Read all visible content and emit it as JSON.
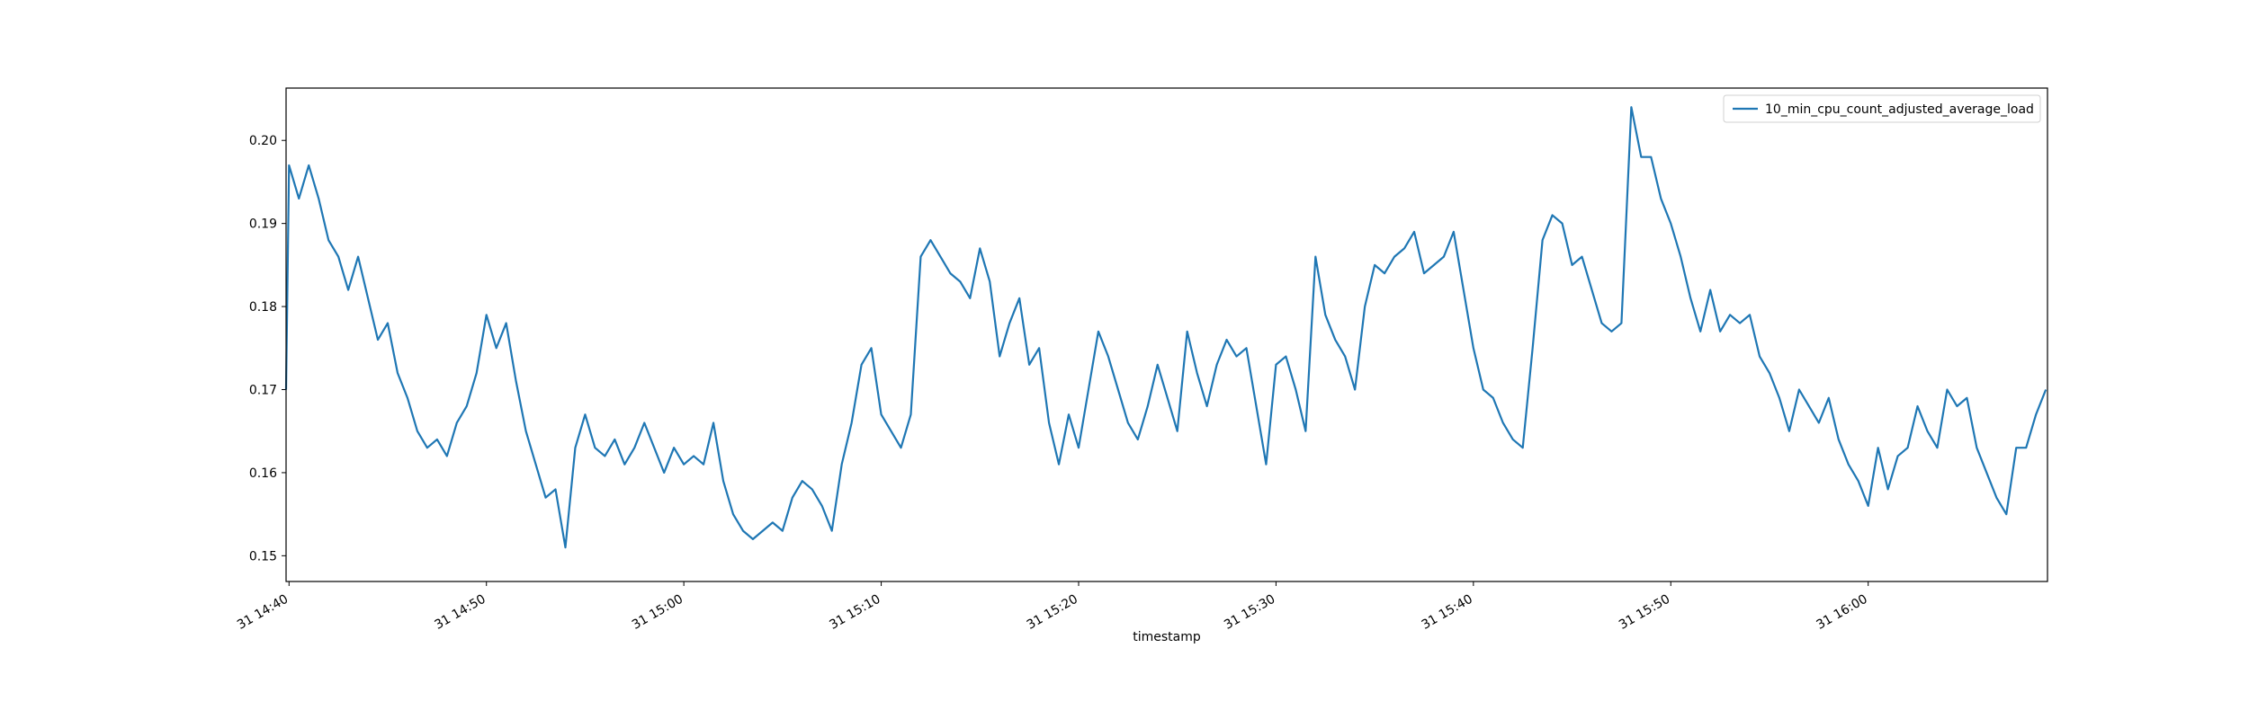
{
  "chart_data": {
    "type": "line",
    "xlabel": "timestamp",
    "x": [
      "31 14:39:51",
      "31 14:40",
      "31 14:40:30",
      "31 14:41",
      "31 14:41:30",
      "31 14:42",
      "31 14:42:30",
      "31 14:43",
      "31 14:43:30",
      "31 14:44",
      "31 14:44:30",
      "31 14:45",
      "31 14:45:30",
      "31 14:46",
      "31 14:46:30",
      "31 14:47",
      "31 14:47:30",
      "31 14:48",
      "31 14:48:30",
      "31 14:49",
      "31 14:49:30",
      "31 14:50",
      "31 14:50:30",
      "31 14:51",
      "31 14:51:30",
      "31 14:52",
      "31 14:52:30",
      "31 14:53",
      "31 14:53:30",
      "31 14:54",
      "31 14:54:30",
      "31 14:55",
      "31 14:55:30",
      "31 14:56",
      "31 14:56:30",
      "31 14:57",
      "31 14:57:30",
      "31 14:58",
      "31 14:58:30",
      "31 14:59",
      "31 14:59:30",
      "31 15:00",
      "31 15:00:30",
      "31 15:01",
      "31 15:01:30",
      "31 15:02",
      "31 15:02:30",
      "31 15:03",
      "31 15:03:30",
      "31 15:04",
      "31 15:04:30",
      "31 15:05",
      "31 15:05:30",
      "31 15:06",
      "31 15:06:30",
      "31 15:07",
      "31 15:07:30",
      "31 15:08",
      "31 15:08:30",
      "31 15:09",
      "31 15:09:30",
      "31 15:10",
      "31 15:10:30",
      "31 15:11",
      "31 15:11:30",
      "31 15:12",
      "31 15:12:30",
      "31 15:13",
      "31 15:13:30",
      "31 15:14",
      "31 15:14:30",
      "31 15:15",
      "31 15:15:30",
      "31 15:16",
      "31 15:16:30",
      "31 15:17",
      "31 15:17:30",
      "31 15:18",
      "31 15:18:30",
      "31 15:19",
      "31 15:19:30",
      "31 15:20",
      "31 15:20:30",
      "31 15:21",
      "31 15:21:30",
      "31 15:22",
      "31 15:22:30",
      "31 15:23",
      "31 15:23:30",
      "31 15:24",
      "31 15:24:30",
      "31 15:25",
      "31 15:25:30",
      "31 15:26",
      "31 15:26:30",
      "31 15:27",
      "31 15:27:30",
      "31 15:28",
      "31 15:28:30",
      "31 15:29",
      "31 15:29:30",
      "31 15:30",
      "31 15:30:30",
      "31 15:31",
      "31 15:31:30",
      "31 15:32",
      "31 15:32:30",
      "31 15:33",
      "31 15:33:30",
      "31 15:34",
      "31 15:34:30",
      "31 15:35",
      "31 15:35:30",
      "31 15:36",
      "31 15:36:30",
      "31 15:37",
      "31 15:37:30",
      "31 15:38",
      "31 15:38:30",
      "31 15:39",
      "31 15:39:30",
      "31 15:40",
      "31 15:40:30",
      "31 15:41",
      "31 15:41:30",
      "31 15:42",
      "31 15:42:30",
      "31 15:43",
      "31 15:43:30",
      "31 15:44",
      "31 15:44:30",
      "31 15:45",
      "31 15:45:30",
      "31 15:46",
      "31 15:46:30",
      "31 15:47",
      "31 15:47:30",
      "31 15:48",
      "31 15:48:30",
      "31 15:49",
      "31 15:49:30",
      "31 15:50",
      "31 15:50:30",
      "31 15:51",
      "31 15:51:30",
      "31 15:52",
      "31 15:52:30",
      "31 15:53",
      "31 15:53:30",
      "31 15:54",
      "31 15:54:30",
      "31 15:55",
      "31 15:55:30",
      "31 15:56",
      "31 15:56:30",
      "31 15:57",
      "31 15:57:30",
      "31 15:58",
      "31 15:58:30",
      "31 15:59",
      "31 15:59:30",
      "31 16:00",
      "31 16:00:30",
      "31 16:01",
      "31 16:01:30",
      "31 16:02",
      "31 16:02:30",
      "31 16:03",
      "31 16:03:30",
      "31 16:04",
      "31 16:04:30",
      "31 16:05",
      "31 16:05:30",
      "31 16:06",
      "31 16:06:30",
      "31 16:07",
      "31 16:07:30",
      "31 16:08",
      "31 16:08:30",
      "31 16:09"
    ],
    "series": [
      {
        "name": "10_min_cpu_count_adjusted_average_load",
        "color": "#1f77b4",
        "values": [
          0.17,
          0.197,
          0.193,
          0.197,
          0.193,
          0.188,
          0.186,
          0.182,
          0.186,
          0.181,
          0.176,
          0.178,
          0.172,
          0.169,
          0.165,
          0.163,
          0.164,
          0.162,
          0.166,
          0.168,
          0.172,
          0.179,
          0.175,
          0.178,
          0.171,
          0.165,
          0.161,
          0.157,
          0.158,
          0.151,
          0.163,
          0.167,
          0.163,
          0.162,
          0.164,
          0.161,
          0.163,
          0.166,
          0.163,
          0.16,
          0.163,
          0.161,
          0.162,
          0.161,
          0.166,
          0.159,
          0.155,
          0.153,
          0.152,
          0.153,
          0.154,
          0.153,
          0.157,
          0.159,
          0.158,
          0.156,
          0.153,
          0.161,
          0.166,
          0.173,
          0.175,
          0.167,
          0.165,
          0.163,
          0.167,
          0.186,
          0.188,
          0.186,
          0.184,
          0.183,
          0.181,
          0.187,
          0.183,
          0.174,
          0.178,
          0.181,
          0.173,
          0.175,
          0.166,
          0.161,
          0.167,
          0.163,
          0.17,
          0.177,
          0.174,
          0.17,
          0.166,
          0.164,
          0.168,
          0.173,
          0.169,
          0.165,
          0.177,
          0.172,
          0.168,
          0.173,
          0.176,
          0.174,
          0.175,
          0.168,
          0.161,
          0.173,
          0.174,
          0.17,
          0.165,
          0.186,
          0.179,
          0.176,
          0.174,
          0.17,
          0.18,
          0.185,
          0.184,
          0.186,
          0.187,
          0.189,
          0.184,
          0.185,
          0.186,
          0.189,
          0.182,
          0.175,
          0.17,
          0.169,
          0.166,
          0.164,
          0.163,
          0.175,
          0.188,
          0.191,
          0.19,
          0.185,
          0.186,
          0.182,
          0.178,
          0.177,
          0.178,
          0.204,
          0.198,
          0.198,
          0.193,
          0.19,
          0.186,
          0.181,
          0.177,
          0.182,
          0.177,
          0.179,
          0.178,
          0.179,
          0.174,
          0.172,
          0.169,
          0.165,
          0.17,
          0.168,
          0.166,
          0.169,
          0.164,
          0.161,
          0.159,
          0.156,
          0.163,
          0.158,
          0.162,
          0.163,
          0.168,
          0.165,
          0.163,
          0.17,
          0.168,
          0.169,
          0.163,
          0.16,
          0.157,
          0.155,
          0.163,
          0.163,
          0.167,
          0.17
        ]
      }
    ],
    "xlim": [
      "31 14:39:51",
      "31 16:09:05"
    ],
    "xticks": [
      "31 14:40",
      "31 14:50",
      "31 15:00",
      "31 15:10",
      "31 15:20",
      "31 15:30",
      "31 15:40",
      "31 15:50",
      "31 16:00"
    ],
    "ylim": [
      0.1469,
      0.2063
    ],
    "yticks": [
      0.15,
      0.16,
      0.17,
      0.18,
      0.19,
      {
        "value": 0.2,
        "label": "0.20"
      }
    ],
    "grid": false,
    "legend": "upper right"
  }
}
